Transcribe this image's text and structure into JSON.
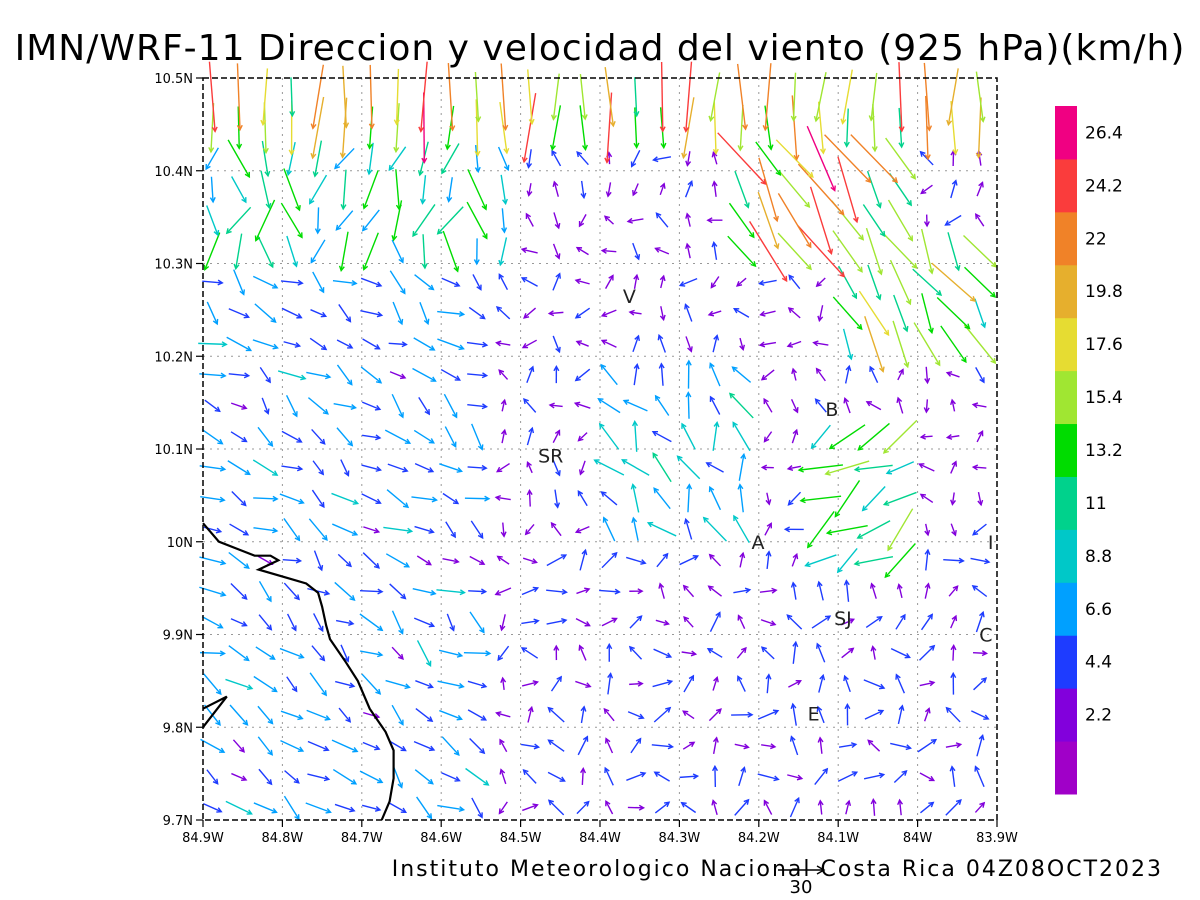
{
  "title": "IMN/WRF-11 Direccion y velocidad del viento (925 hPa)(km/h)",
  "footer": "Instituto Meteorologico Nacional Costa Rica 04Z08OCT2023",
  "reference_vector": {
    "label": "30",
    "speed_kmh": 30
  },
  "lat_labels": [
    "10.5N",
    "10.4N",
    "10.3N",
    "10.2N",
    "10.1N",
    "10N",
    "9.9N",
    "9.8N",
    "9.7N"
  ],
  "lon_labels": [
    "84.9W",
    "84.8W",
    "84.7W",
    "84.6W",
    "84.5W",
    "84.4W",
    "84.3W",
    "84.2W",
    "84.1W",
    "84W",
    "83.9W"
  ],
  "extent": {
    "lon_min": -84.9,
    "lon_max": -83.9,
    "lat_min": 9.7,
    "lat_max": 10.5
  },
  "colorbar": {
    "colors": [
      "#a000c8",
      "#8200dc",
      "#1e3cff",
      "#00a0ff",
      "#00c8c8",
      "#00d28c",
      "#00dc00",
      "#a0e632",
      "#e6dc32",
      "#e6af2d",
      "#f08228",
      "#fa3c3c",
      "#f00082"
    ],
    "labels": [
      "2.2",
      "4.4",
      "6.6",
      "8.8",
      "11",
      "13.2",
      "15.4",
      "17.6",
      "19.8",
      "22",
      "24.2",
      "26.4"
    ]
  },
  "places": [
    {
      "label": "V",
      "lon": -84.363,
      "lat": 10.265
    },
    {
      "label": "SR",
      "lon": -84.462,
      "lat": 10.093
    },
    {
      "label": "B",
      "lon": -84.108,
      "lat": 10.143
    },
    {
      "label": "A",
      "lon": -84.201,
      "lat": 10.0
    },
    {
      "label": "SJ",
      "lon": -84.094,
      "lat": 9.918
    },
    {
      "label": "C",
      "lon": -83.914,
      "lat": 9.9
    },
    {
      "label": "E",
      "lon": -84.131,
      "lat": 9.815
    },
    {
      "label": "I",
      "lon": -83.908,
      "lat": 10.0
    }
  ],
  "coastline": [
    [
      -84.9,
      10.02
    ],
    [
      -84.88,
      10.0
    ],
    [
      -84.85,
      9.99
    ],
    [
      -84.835,
      9.985
    ],
    [
      -84.815,
      9.985
    ],
    [
      -84.805,
      9.98
    ],
    [
      -84.83,
      9.97
    ],
    [
      -84.79,
      9.96
    ],
    [
      -84.77,
      9.955
    ],
    [
      -84.755,
      9.945
    ],
    [
      -84.75,
      9.93
    ],
    [
      -84.745,
      9.91
    ],
    [
      -84.74,
      9.895
    ],
    [
      -84.72,
      9.87
    ],
    [
      -84.705,
      9.85
    ],
    [
      -84.69,
      9.82
    ],
    [
      -84.67,
      9.795
    ],
    [
      -84.66,
      9.775
    ],
    [
      -84.66,
      9.745
    ],
    [
      -84.665,
      9.72
    ],
    [
      -84.675,
      9.7
    ]
  ],
  "coastline2": [
    [
      -84.9,
      9.82
    ],
    [
      -84.87,
      9.833
    ],
    [
      -84.9,
      9.8
    ]
  ],
  "wind_regions": [
    {
      "lon_min": -84.9,
      "lon_max": -83.9,
      "lat_min": 10.42,
      "lat_max": 10.5,
      "dir": 268,
      "speed": 21,
      "jitter": 10
    },
    {
      "lon_min": -84.9,
      "lon_max": -84.5,
      "lat_min": 10.3,
      "lat_max": 10.42,
      "dir": 265,
      "speed": 12,
      "jitter": 40
    },
    {
      "lon_min": -84.25,
      "lon_max": -84.02,
      "lat_min": 10.3,
      "lat_max": 10.42,
      "dir": 300,
      "speed": 21,
      "jitter": 15
    },
    {
      "lon_min": -84.1,
      "lon_max": -83.9,
      "lat_min": 10.2,
      "lat_max": 10.32,
      "dir": 300,
      "speed": 16,
      "jitter": 20
    },
    {
      "lon_min": -84.9,
      "lon_max": -84.55,
      "lat_min": 9.7,
      "lat_max": 10.3,
      "dir": 325,
      "speed": 7,
      "jitter": 35
    },
    {
      "lon_min": -84.4,
      "lon_max": -84.2,
      "lat_min": 10.0,
      "lat_max": 10.2,
      "dir": 120,
      "speed": 9,
      "jitter": 40
    },
    {
      "lon_min": -84.15,
      "lon_max": -84.0,
      "lat_min": 9.95,
      "lat_max": 10.12,
      "dir": 210,
      "speed": 13,
      "jitter": 30
    },
    {
      "lon_min": -84.5,
      "lon_max": -83.9,
      "lat_min": 9.7,
      "lat_max": 10.0,
      "dir": 60,
      "speed": 5,
      "jitter": 90
    }
  ],
  "default_wind": {
    "dir": 180,
    "speed": 4,
    "jitter": 120
  }
}
